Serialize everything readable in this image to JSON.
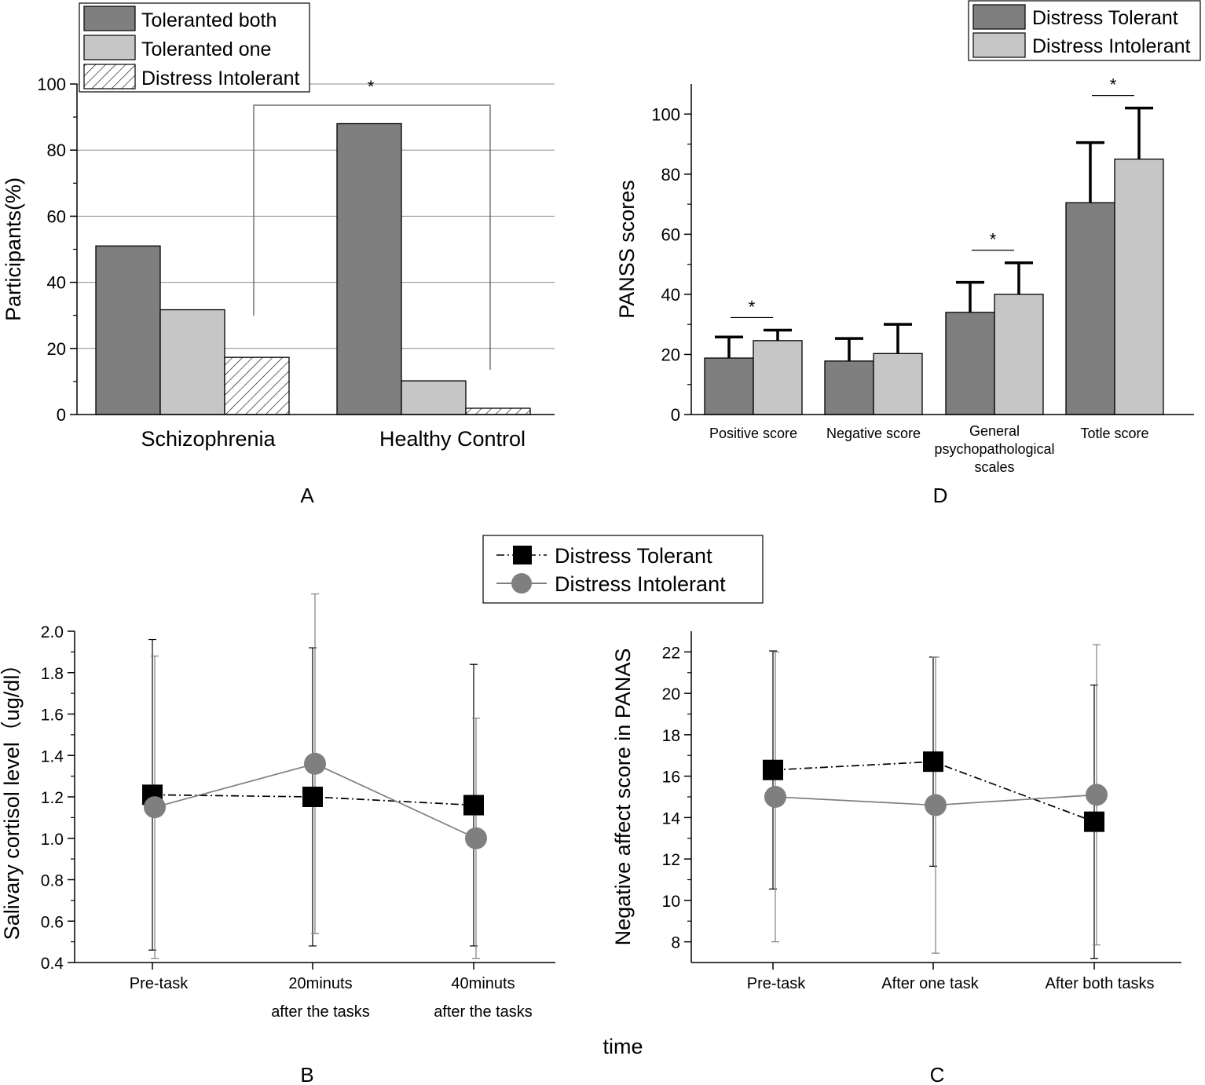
{
  "chart_data": [
    {
      "panel": "A",
      "type": "bar",
      "ylabel": "Participants(%)",
      "ylim": [
        0,
        100
      ],
      "yticks": [
        0,
        20,
        40,
        60,
        80,
        100
      ],
      "grid": true,
      "categories": [
        "Schizophrenia",
        "Healthy Control"
      ],
      "series": [
        {
          "name": "Toleranted both",
          "values": [
            51,
            88
          ],
          "color": "#7f7f7f",
          "pattern": "solid"
        },
        {
          "name": "Toleranted one",
          "values": [
            31.7,
            10.2
          ],
          "color": "#c6c6c6",
          "pattern": "solid"
        },
        {
          "name": "Distress Intolerant",
          "values": [
            17.3,
            1.9
          ],
          "color": "#ffffff",
          "pattern": "hatch"
        }
      ],
      "legend": "top-left",
      "annotation": {
        "label": "*",
        "between": [
          "Schizophrenia: Distress Intolerant",
          "Healthy Control: Distress Intolerant"
        ]
      }
    },
    {
      "panel": "D",
      "type": "bar",
      "ylabel": "PANSS scores",
      "ylim": [
        0,
        110
      ],
      "yticks": [
        0,
        20,
        40,
        60,
        80,
        100
      ],
      "grid": false,
      "categories": [
        [
          "Positive score"
        ],
        [
          "Negative score"
        ],
        [
          "General",
          "psychopathological",
          "scales"
        ],
        [
          "Totle score"
        ]
      ],
      "series": [
        {
          "name": "Distress Tolerant",
          "values": [
            18.8,
            17.8,
            34,
            70.5
          ],
          "errors": [
            7,
            7.5,
            10,
            20
          ],
          "color": "#7f7f7f"
        },
        {
          "name": "Distress Intolerant",
          "values": [
            24.6,
            20.3,
            40,
            85
          ],
          "errors": [
            3.5,
            9.7,
            10.5,
            17
          ],
          "color": "#c6c6c6"
        }
      ],
      "significance": [
        "*",
        "",
        "*",
        "*"
      ],
      "legend": "top-right"
    },
    {
      "panel": "B",
      "type": "line",
      "ylabel": "Salivary cortisol level（ug/dl）",
      "ylim": [
        0.4,
        2.0
      ],
      "yticks": [
        "0.4",
        "0.6",
        "0.8",
        "1.0",
        "1.2",
        "1.4",
        "1.6",
        "1.8",
        "2.0"
      ],
      "categories": [
        [
          "Pre-task"
        ],
        [
          "20minuts",
          "after the tasks"
        ],
        [
          "40minuts",
          "after the tasks"
        ]
      ],
      "series": [
        {
          "name": "Distress Tolerant",
          "values": [
            1.21,
            1.2,
            1.16
          ],
          "errors": [
            0.75,
            0.72,
            0.68
          ],
          "marker": "square",
          "line": "dash-dot",
          "color": "#000000"
        },
        {
          "name": "Distress Intolerant",
          "values": [
            1.15,
            1.36,
            1.0
          ],
          "errors": [
            0.73,
            0.82,
            0.58
          ],
          "marker": "circle",
          "line": "solid",
          "color": "#7f7f7f"
        }
      ]
    },
    {
      "panel": "C",
      "type": "line",
      "ylabel": "Negative affect score in PANAS",
      "ylim": [
        7,
        23
      ],
      "yticks": [
        8,
        10,
        12,
        14,
        16,
        18,
        20,
        22
      ],
      "categories": [
        [
          "Pre-task"
        ],
        [
          "After one task"
        ],
        [
          "After both tasks"
        ]
      ],
      "series": [
        {
          "name": "Distress Tolerant",
          "values": [
            16.3,
            16.7,
            13.8
          ],
          "errors": [
            5.75,
            5.05,
            6.6
          ],
          "marker": "square",
          "line": "dash-dot",
          "color": "#000000"
        },
        {
          "name": "Distress Intolerant",
          "values": [
            15,
            14.6,
            15.1
          ],
          "errors": [
            7,
            7.15,
            7.25
          ],
          "marker": "circle",
          "line": "solid",
          "color": "#7f7f7f"
        }
      ]
    }
  ],
  "labels": {
    "panel_a": "A",
    "panel_b": "B",
    "panel_c": "C",
    "panel_d": "D",
    "shared_xlabel": "time",
    "shared_legend": [
      "Distress Tolerant",
      "Distress Intolerant"
    ]
  }
}
